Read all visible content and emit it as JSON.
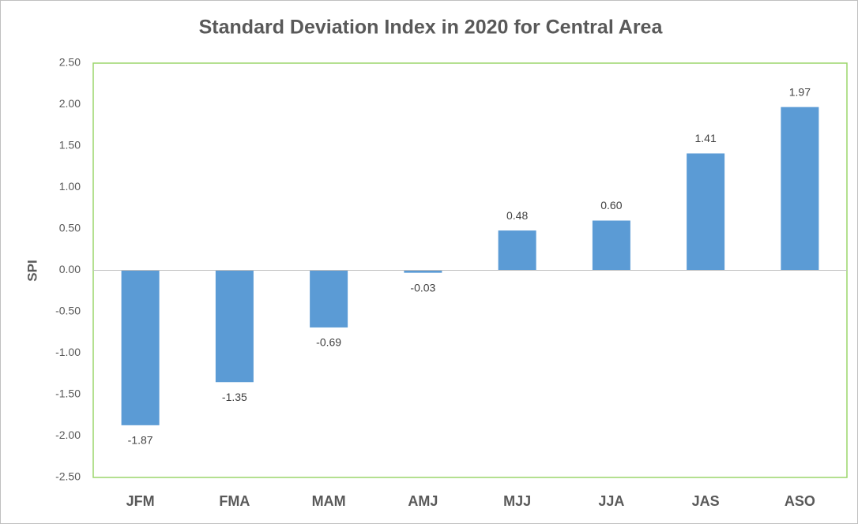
{
  "chart_data": {
    "type": "bar",
    "title": "Standard Deviation Index in 2020 for Central Area",
    "y_label": "SPI",
    "categories": [
      "JFM",
      "FMA",
      "MAM",
      "AMJ",
      "MJJ",
      "JJA",
      "JAS",
      "ASO"
    ],
    "values": [
      -1.87,
      -1.35,
      -0.69,
      -0.03,
      0.48,
      0.6,
      1.41,
      1.97
    ],
    "value_labels": [
      "-1.87",
      "-1.35",
      "-0.69",
      "-0.03",
      "0.48",
      "0.60",
      "1.41",
      "1.97"
    ],
    "color": "#5b9bd5",
    "ylim": [
      -2.5,
      2.5
    ],
    "yticks": [
      {
        "value": -2.5,
        "label": "-2.50"
      },
      {
        "value": -2,
        "label": "-2.00"
      },
      {
        "value": -1.5,
        "label": "-1.50"
      },
      {
        "value": -1,
        "label": "-1.00"
      },
      {
        "value": -0.5,
        "label": "-0.50"
      },
      {
        "value": 0,
        "label": "0.00"
      },
      {
        "value": 0.5,
        "label": "0.50"
      },
      {
        "value": 1,
        "label": "1.00"
      },
      {
        "value": 1.5,
        "label": "1.50"
      },
      {
        "value": 2,
        "label": "2.00"
      },
      {
        "value": 2.5,
        "label": "2.50"
      }
    ],
    "grid": false
  }
}
